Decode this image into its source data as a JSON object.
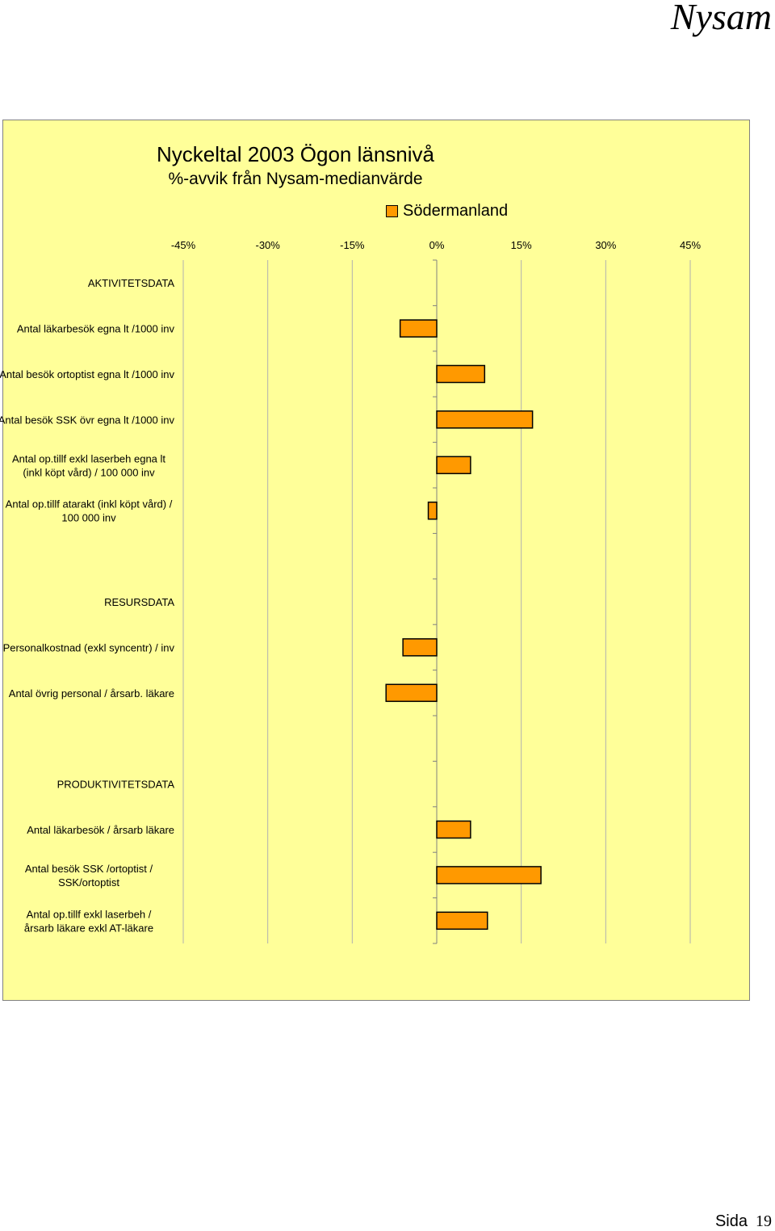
{
  "brand": "Nysam",
  "footer": {
    "label": "Sida",
    "page": "19"
  },
  "chart_data": {
    "type": "bar",
    "orientation": "horizontal",
    "title": "Nyckeltal 2003  Ögon länsnivå",
    "subtitle": "%-avvik från Nysam-medianvärde",
    "legend": "top",
    "xlim": [
      -45,
      45
    ],
    "xticks": [
      -45,
      -30,
      -15,
      0,
      15,
      30,
      45
    ],
    "xtick_labels": [
      "-45%",
      "-30%",
      "-15%",
      "0%",
      "15%",
      "30%",
      "45%"
    ],
    "grid": true,
    "bar_color": "#ff9900",
    "series": [
      {
        "name": "Södermanland"
      }
    ],
    "categories": [
      {
        "label": [
          "AKTIVITETSDATA"
        ],
        "value": null
      },
      {
        "label": [
          "Antal läkarbesök egna lt /1000 inv"
        ],
        "value": -6.5
      },
      {
        "label": [
          "Antal besök ortoptist egna lt /1000 inv"
        ],
        "value": 8.5
      },
      {
        "label": [
          "Antal besök SSK övr egna lt /1000 inv"
        ],
        "value": 17
      },
      {
        "label": [
          "Antal op.tillf  exkl laserbeh egna lt",
          "(inkl köpt vård) / 100 000 inv"
        ],
        "value": 6
      },
      {
        "label": [
          "Antal op.tillf atarakt (inkl köpt vård) /",
          "100 000 inv"
        ],
        "value": -1.5
      },
      {
        "label": [
          ""
        ],
        "value": null
      },
      {
        "label": [
          "RESURSDATA"
        ],
        "value": null
      },
      {
        "label": [
          "Personalkostnad (exkl syncentr) / inv"
        ],
        "value": -6
      },
      {
        "label": [
          "Antal övrig personal / årsarb. läkare"
        ],
        "value": -9
      },
      {
        "label": [
          ""
        ],
        "value": null
      },
      {
        "label": [
          "PRODUKTIVITETSDATA"
        ],
        "value": null
      },
      {
        "label": [
          "Antal läkarbesök / årsarb läkare"
        ],
        "value": 6
      },
      {
        "label": [
          "Antal besök SSK /ortoptist /",
          "SSK/ortoptist"
        ],
        "value": 18.5
      },
      {
        "label": [
          "Antal op.tillf exkl laserbeh /",
          "årsarb läkare exkl AT-läkare"
        ],
        "value": 9
      }
    ]
  }
}
